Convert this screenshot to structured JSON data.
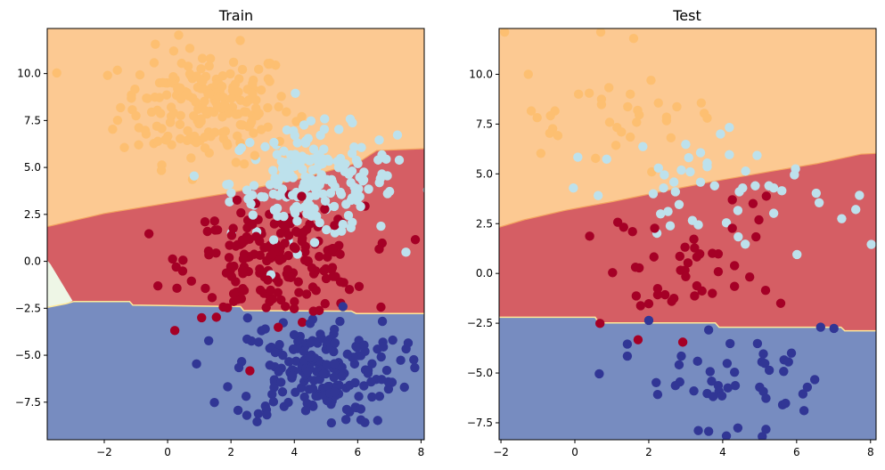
{
  "colors": {
    "region_orange": "#fcc992",
    "region_red": "#d55e64",
    "region_blue": "#778cc0",
    "region_green": "#eef6e6",
    "point_orange": "#fdbf71",
    "point_lightblue": "#bde1ec",
    "point_red": "#a50026",
    "point_blue": "#313695",
    "edge_orange": "#f4a460",
    "edge_yellow": "#fee999"
  },
  "chart_data": [
    {
      "type": "scatter",
      "title": "Train",
      "xlim": [
        -3.8,
        8.1
      ],
      "ylim": [
        -9.5,
        12.4
      ],
      "xticks": [
        -2,
        0,
        2,
        4,
        6,
        8
      ],
      "xtick_labels": [
        "−2",
        "0",
        "2",
        "4",
        "6",
        "8"
      ],
      "yticks": [
        -7.5,
        -5,
        -2.5,
        0,
        2.5,
        5,
        7.5,
        10
      ],
      "ytick_labels": [
        "−7.5",
        "−5.0",
        "−2.5",
        "0.0",
        "2.5",
        "5.0",
        "7.5",
        "10.0"
      ],
      "decision_boundaries": {
        "orange_red": [
          [
            -3.8,
            1.85
          ],
          [
            -2,
            2.55
          ],
          [
            0,
            3.1
          ],
          [
            2,
            3.66
          ],
          [
            4,
            4.32
          ],
          [
            6,
            5.24
          ],
          [
            6.6,
            5.9
          ],
          [
            8.1,
            6.0
          ]
        ],
        "red_blue": [
          [
            -3.8,
            -2.45
          ],
          [
            -3.2,
            -2.25
          ],
          [
            -2.96,
            -2.14
          ],
          [
            -1.2,
            -2.14
          ],
          [
            -1.1,
            -2.33
          ],
          [
            2.3,
            -2.41
          ],
          [
            2.4,
            -2.62
          ],
          [
            5.8,
            -2.65
          ],
          [
            5.95,
            -2.78
          ],
          [
            8.1,
            -2.78
          ]
        ],
        "green_wedge": [
          [
            -3.8,
            0.05
          ],
          [
            -3.7,
            -0.15
          ],
          [
            -3.0,
            -2.1
          ],
          [
            -3.2,
            -2.25
          ],
          [
            -3.8,
            -2.45
          ]
        ]
      },
      "train_clusters": [
        {
          "class": "orange",
          "center": [
            1.2,
            8.3
          ],
          "sd": [
            1.35,
            1.5
          ],
          "n": 200
        },
        {
          "class": "lightblue",
          "center": [
            4.6,
            4.2
          ],
          "sd": [
            1.3,
            1.45
          ],
          "n": 200
        },
        {
          "class": "red",
          "center": [
            3.4,
            0.0
          ],
          "sd": [
            1.4,
            1.45
          ],
          "n": 200
        },
        {
          "class": "blue",
          "center": [
            4.7,
            -5.8
          ],
          "sd": [
            1.3,
            1.45
          ],
          "n": 200
        }
      ]
    },
    {
      "type": "scatter",
      "title": "Test",
      "xlim": [
        -2.05,
        8.15
      ],
      "ylim": [
        -8.35,
        12.3
      ],
      "xticks": [
        -2,
        0,
        2,
        4,
        6,
        8
      ],
      "xtick_labels": [
        "−2",
        "0",
        "2",
        "4",
        "6",
        "8"
      ],
      "yticks": [
        -7.5,
        -5,
        -2.5,
        0,
        2.5,
        5,
        7.5,
        10
      ],
      "ytick_labels": [
        "−7.5",
        "−5.0",
        "−2.5",
        "0.0",
        "2.5",
        "5.0",
        "7.5",
        "10.0"
      ],
      "decision_boundaries": {
        "orange_red": [
          [
            -2.05,
            2.32
          ],
          [
            -1.38,
            2.69
          ],
          [
            -0.26,
            3.17
          ],
          [
            0.94,
            3.58
          ],
          [
            2.14,
            4.03
          ],
          [
            3.74,
            4.62
          ],
          [
            5.34,
            5.14
          ],
          [
            6.54,
            5.51
          ],
          [
            7.74,
            5.99
          ],
          [
            8.15,
            6.03
          ]
        ],
        "red_blue": [
          [
            -2.05,
            -2.2
          ],
          [
            0.55,
            -2.2
          ],
          [
            0.65,
            -2.48
          ],
          [
            3.8,
            -2.48
          ],
          [
            3.9,
            -2.7
          ],
          [
            7.2,
            -2.7
          ],
          [
            7.3,
            -2.88
          ],
          [
            8.15,
            -2.88
          ]
        ]
      },
      "points": {
        "orange": [
          [
            -1.9,
            12.12
          ],
          [
            0.7,
            12.12
          ],
          [
            1.59,
            11.8
          ],
          [
            -1.26,
            10.0
          ],
          [
            2.06,
            9.7
          ],
          [
            0.1,
            9.0
          ],
          [
            0.39,
            9.05
          ],
          [
            1.5,
            9.0
          ],
          [
            0.92,
            9.33
          ],
          [
            0.72,
            8.75
          ],
          [
            0.72,
            8.48
          ],
          [
            -1.18,
            8.16
          ],
          [
            -1.02,
            7.82
          ],
          [
            -0.54,
            8.16
          ],
          [
            -0.66,
            7.92
          ],
          [
            2.26,
            8.56
          ],
          [
            2.76,
            8.37
          ],
          [
            3.42,
            8.56
          ],
          [
            1.43,
            8.37
          ],
          [
            1.7,
            8.19
          ],
          [
            1.74,
            7.96
          ],
          [
            1.67,
            7.59
          ],
          [
            0.94,
            7.59
          ],
          [
            1.14,
            7.33
          ],
          [
            1.26,
            7.1
          ],
          [
            2.48,
            7.85
          ],
          [
            2.48,
            7.67
          ],
          [
            -0.6,
            7.27
          ],
          [
            -0.68,
            7.04
          ],
          [
            -0.46,
            6.92
          ],
          [
            1.5,
            6.85
          ],
          [
            2.6,
            6.81
          ],
          [
            1.11,
            6.43
          ],
          [
            -0.92,
            6.03
          ],
          [
            0.56,
            5.78
          ],
          [
            3.5,
            8.04
          ],
          [
            3.58,
            7.8
          ],
          [
            2.08,
            5.1
          ]
        ],
        "lightblue": [
          [
            4.18,
            7.33
          ],
          [
            3.94,
            7.0
          ],
          [
            3.0,
            6.48
          ],
          [
            1.84,
            6.37
          ],
          [
            0.08,
            5.84
          ],
          [
            0.86,
            5.74
          ],
          [
            3.08,
            5.81
          ],
          [
            3.4,
            6.06
          ],
          [
            4.18,
            5.96
          ],
          [
            4.93,
            5.93
          ],
          [
            3.58,
            5.54
          ],
          [
            3.58,
            5.36
          ],
          [
            2.26,
            5.29
          ],
          [
            2.88,
            5.19
          ],
          [
            3.12,
            5.1
          ],
          [
            2.42,
            4.95
          ],
          [
            4.62,
            5.14
          ],
          [
            5.97,
            5.25
          ],
          [
            5.94,
            4.95
          ],
          [
            2.68,
            4.59
          ],
          [
            2.4,
            4.29
          ],
          [
            -0.04,
            4.29
          ],
          [
            0.63,
            3.91
          ],
          [
            2.12,
            4.0
          ],
          [
            2.72,
            4.1
          ],
          [
            3.4,
            4.58
          ],
          [
            3.78,
            4.4
          ],
          [
            4.54,
            4.29
          ],
          [
            4.45,
            4.1
          ],
          [
            4.88,
            4.4
          ],
          [
            5.25,
            4.4
          ],
          [
            5.38,
            4.29
          ],
          [
            5.6,
            4.15
          ],
          [
            6.53,
            4.03
          ],
          [
            6.61,
            3.55
          ],
          [
            7.7,
            3.92
          ],
          [
            2.82,
            3.46
          ],
          [
            2.52,
            3.11
          ],
          [
            2.32,
            2.99
          ],
          [
            4.41,
            3.16
          ],
          [
            5.38,
            3.02
          ],
          [
            7.6,
            3.21
          ],
          [
            7.22,
            2.75
          ],
          [
            3.18,
            2.66
          ],
          [
            3.34,
            2.44
          ],
          [
            4.1,
            2.54
          ],
          [
            2.58,
            2.39
          ],
          [
            2.22,
            2.02
          ],
          [
            4.42,
            1.84
          ],
          [
            4.61,
            1.47
          ],
          [
            8.02,
            1.46
          ],
          [
            6.01,
            0.95
          ]
        ],
        "red": [
          [
            4.26,
            3.7
          ],
          [
            4.82,
            3.51
          ],
          [
            5.18,
            3.88
          ],
          [
            4.98,
            2.69
          ],
          [
            4.26,
            2.27
          ],
          [
            4.9,
            1.84
          ],
          [
            1.16,
            2.57
          ],
          [
            1.32,
            2.32
          ],
          [
            1.56,
            2.1
          ],
          [
            2.16,
            2.27
          ],
          [
            0.4,
            1.87
          ],
          [
            3.22,
            1.72
          ],
          [
            2.98,
            1.32
          ],
          [
            3.24,
            1.28
          ],
          [
            3.38,
            0.98
          ],
          [
            3.3,
            0.83
          ],
          [
            3.72,
            1.01
          ],
          [
            3.88,
            0.98
          ],
          [
            2.84,
            0.86
          ],
          [
            2.14,
            0.83
          ],
          [
            3.06,
            0.53
          ],
          [
            2.86,
            0.16
          ],
          [
            2.98,
            0.16
          ],
          [
            3.0,
            -0.16
          ],
          [
            3.88,
            0.09
          ],
          [
            4.32,
            0.39
          ],
          [
            1.02,
            0.04
          ],
          [
            1.64,
            0.31
          ],
          [
            1.74,
            0.28
          ],
          [
            4.73,
            -0.18
          ],
          [
            3.3,
            -0.62
          ],
          [
            3.44,
            -0.88
          ],
          [
            3.24,
            -1.13
          ],
          [
            3.72,
            -1.0
          ],
          [
            4.32,
            -0.65
          ],
          [
            2.24,
            -0.76
          ],
          [
            2.24,
            -1.07
          ],
          [
            2.44,
            -1.07
          ],
          [
            2.68,
            -1.25
          ],
          [
            2.62,
            -1.4
          ],
          [
            1.66,
            -1.13
          ],
          [
            1.78,
            -1.62
          ],
          [
            2.0,
            -1.52
          ],
          [
            5.16,
            -0.85
          ],
          [
            5.57,
            -1.5
          ],
          [
            0.68,
            -2.51
          ],
          [
            1.71,
            -3.33
          ],
          [
            2.92,
            -3.45
          ]
        ],
        "blue": [
          [
            2.0,
            -2.36
          ],
          [
            3.62,
            -2.84
          ],
          [
            6.65,
            -2.7
          ],
          [
            7.01,
            -2.76
          ],
          [
            4.2,
            -3.52
          ],
          [
            4.94,
            -3.52
          ],
          [
            1.42,
            -3.55
          ],
          [
            1.42,
            -4.15
          ],
          [
            2.88,
            -4.15
          ],
          [
            5.1,
            -4.04
          ],
          [
            5.86,
            -4.0
          ],
          [
            3.32,
            -4.41
          ],
          [
            4.12,
            -4.52
          ],
          [
            5.66,
            -4.34
          ],
          [
            5.78,
            -4.44
          ],
          [
            5.06,
            -4.44
          ],
          [
            5.14,
            -4.52
          ],
          [
            2.82,
            -4.59
          ],
          [
            5.26,
            -4.86
          ],
          [
            0.66,
            -5.04
          ],
          [
            3.66,
            -4.93
          ],
          [
            4.32,
            -4.96
          ],
          [
            5.65,
            -4.92
          ],
          [
            6.49,
            -5.33
          ],
          [
            2.2,
            -5.48
          ],
          [
            2.24,
            -6.08
          ],
          [
            2.84,
            -5.45
          ],
          [
            2.72,
            -5.63
          ],
          [
            3.22,
            -5.9
          ],
          [
            3.7,
            -5.41
          ],
          [
            3.88,
            -5.63
          ],
          [
            3.9,
            -5.93
          ],
          [
            4.14,
            -5.75
          ],
          [
            4.34,
            -5.63
          ],
          [
            5.0,
            -5.71
          ],
          [
            5.1,
            -5.93
          ],
          [
            5.17,
            -6.27
          ],
          [
            3.58,
            -6.03
          ],
          [
            3.74,
            -6.18
          ],
          [
            3.98,
            -6.15
          ],
          [
            6.29,
            -5.71
          ],
          [
            6.17,
            -6.05
          ],
          [
            5.62,
            -6.6
          ],
          [
            5.7,
            -6.52
          ],
          [
            6.2,
            -6.89
          ],
          [
            3.34,
            -7.89
          ],
          [
            3.62,
            -7.93
          ],
          [
            4.1,
            -8.16
          ],
          [
            4.41,
            -7.76
          ],
          [
            5.07,
            -8.19
          ],
          [
            5.17,
            -7.83
          ]
        ]
      }
    }
  ]
}
